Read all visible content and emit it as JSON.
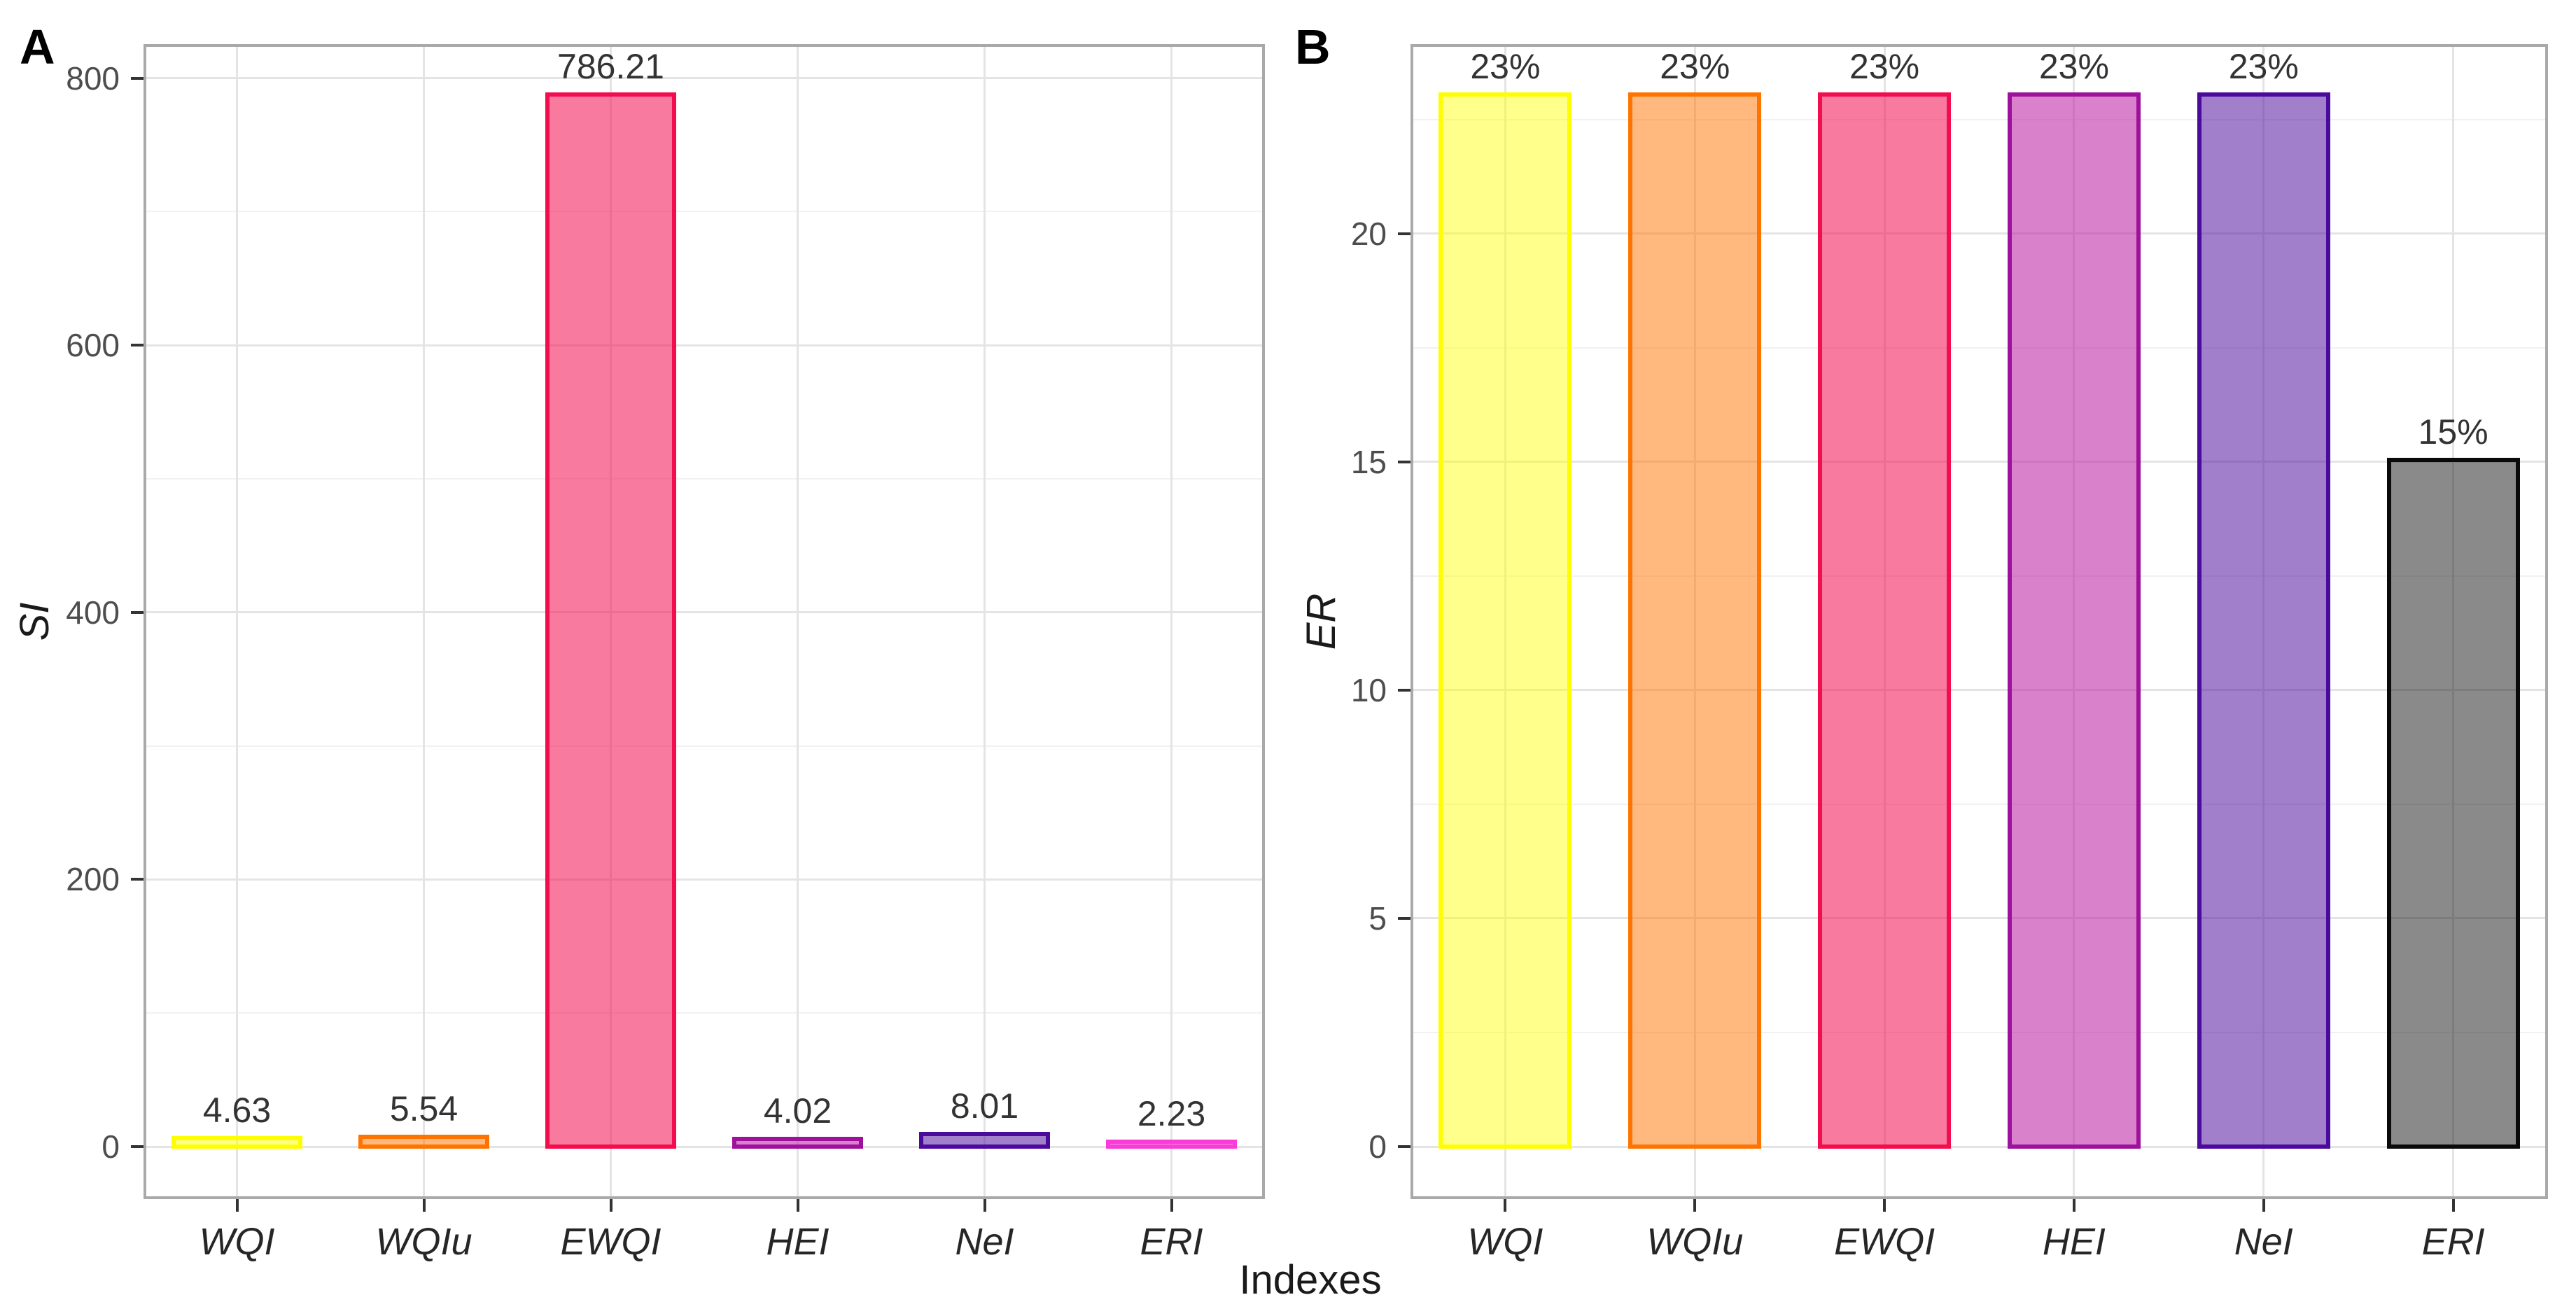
{
  "figure": {
    "x_axis_title": "Indexes",
    "background": "#FFFFFF",
    "panel_border_color": "#A9A9A9",
    "grid_major_color": "#E4E4E4",
    "grid_minor_color": "#F1F1F1",
    "axis_tick_color": "#333333",
    "y_tick_label_color": "#4D4D4D",
    "x_tick_label_color": "#262626",
    "value_label_color": "#333333",
    "panel_label_color": "#000000"
  },
  "chart_data": [
    {
      "type": "bar",
      "panel_label": "A",
      "xlabel": "Indexes",
      "ylabel": "SI",
      "categories": [
        "WQI",
        "WQIu",
        "EWQI",
        "HEI",
        "NeI",
        "ERI"
      ],
      "values": [
        4.63,
        5.54,
        786.21,
        4.02,
        8.01,
        2.23
      ],
      "value_labels": [
        "4.63",
        "5.54",
        "786.21",
        "4.02",
        "8.01",
        "2.23"
      ],
      "y_ticks": [
        0,
        200,
        400,
        600,
        800
      ],
      "y_minor_ticks": [
        100,
        300,
        500,
        700
      ],
      "ylim": [
        -39.31,
        825.52
      ],
      "grid": true,
      "legend_position": "none",
      "bar_style": [
        {
          "fill": "rgba(255,255,0,0.45)",
          "stroke": "#FEFE00"
        },
        {
          "fill": "rgba(255,116,0,0.50)",
          "stroke": "#FF7400"
        },
        {
          "fill": "rgba(243,13,78,0.55)",
          "stroke": "#F30D4E"
        },
        {
          "fill": "rgba(186,27,160,0.55)",
          "stroke": "#9E119C"
        },
        {
          "fill": "rgba(74,10,156,0.52)",
          "stroke": "#4A0A9C"
        },
        {
          "fill": "rgba(251,59,215,0.55)",
          "stroke": "#FB3BD7"
        }
      ]
    },
    {
      "type": "bar",
      "panel_label": "B",
      "xlabel": "Indexes",
      "ylabel": "ER",
      "categories": [
        "WQI",
        "WQIu",
        "EWQI",
        "HEI",
        "NeI",
        "ERI"
      ],
      "values": [
        23,
        23,
        23,
        23,
        23,
        15
      ],
      "value_labels": [
        "23%",
        "23%",
        "23%",
        "23%",
        "23%",
        "15%"
      ],
      "y_ticks": [
        0,
        5,
        10,
        15,
        20
      ],
      "y_minor_ticks": [
        2.5,
        7.5,
        12.5,
        17.5,
        22.5
      ],
      "ylim": [
        -1.15,
        24.15
      ],
      "grid": true,
      "legend_position": "none",
      "bar_style": [
        {
          "fill": "rgba(255,255,0,0.45)",
          "stroke": "#FEFE00"
        },
        {
          "fill": "rgba(255,116,0,0.50)",
          "stroke": "#FF7400"
        },
        {
          "fill": "rgba(243,13,78,0.55)",
          "stroke": "#F30D4E"
        },
        {
          "fill": "rgba(186,27,160,0.55)",
          "stroke": "#9E119C"
        },
        {
          "fill": "rgba(74,10,156,0.52)",
          "stroke": "#4A0A9C"
        },
        {
          "fill": "rgba(10,10,10,0.48)",
          "stroke": "#0A0A0A"
        }
      ]
    }
  ]
}
